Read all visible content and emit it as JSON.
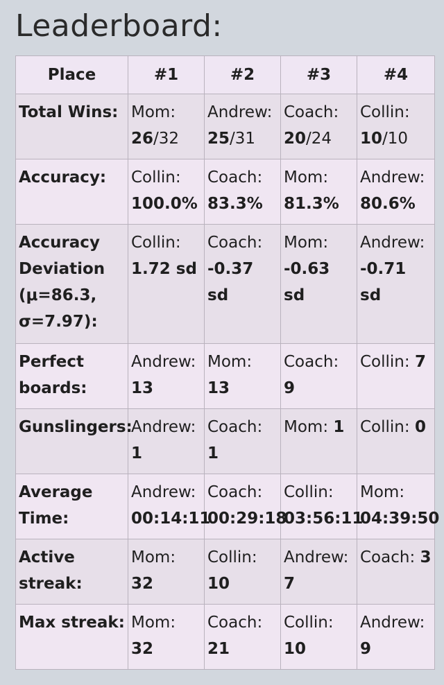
{
  "title": "Leaderboard:",
  "header": [
    "Place",
    "#1",
    "#2",
    "#3",
    "#4"
  ],
  "rows": [
    {
      "label": "Total Wins:",
      "cells": [
        {
          "name": "Mom:",
          "value": "26",
          "suffix": "/32"
        },
        {
          "name": "Andrew:",
          "value": "25",
          "suffix": "/31"
        },
        {
          "name": "Coach:",
          "value": "20",
          "suffix": "/24"
        },
        {
          "name": "Collin:",
          "value": "10",
          "suffix": "/10"
        }
      ]
    },
    {
      "label": "Accuracy:",
      "cells": [
        {
          "name": "Collin:",
          "value": "100.0%",
          "suffix": ""
        },
        {
          "name": "Coach:",
          "value": "83.3%",
          "suffix": ""
        },
        {
          "name": "Mom:",
          "value": "81.3%",
          "suffix": ""
        },
        {
          "name": "Andrew:",
          "value": "80.6%",
          "suffix": ""
        }
      ]
    },
    {
      "label": "Accuracy Deviation (μ=86.3, σ=7.97):",
      "cells": [
        {
          "name": "Collin:",
          "value": "1.72 sd",
          "suffix": ""
        },
        {
          "name": "Coach:",
          "value": "-0.37 sd",
          "suffix": ""
        },
        {
          "name": "Mom:",
          "value": "-0.63 sd",
          "suffix": ""
        },
        {
          "name": "Andrew:",
          "value": "-0.71 sd",
          "suffix": ""
        }
      ]
    },
    {
      "label": "Perfect boards:",
      "cells": [
        {
          "name": "Andrew:",
          "value": "13",
          "suffix": ""
        },
        {
          "name": "Mom:",
          "value": "13",
          "suffix": ""
        },
        {
          "name": "Coach:",
          "value": "9",
          "suffix": ""
        },
        {
          "name": "Collin:",
          "value": "7",
          "suffix": ""
        }
      ]
    },
    {
      "label": "Gunslingers:",
      "cells": [
        {
          "name": "Andrew:",
          "value": "1",
          "suffix": ""
        },
        {
          "name": "Coach:",
          "value": "1",
          "suffix": ""
        },
        {
          "name": "Mom:",
          "value": "1",
          "suffix": ""
        },
        {
          "name": "Collin:",
          "value": "0",
          "suffix": ""
        }
      ]
    },
    {
      "label": "Average Time:",
      "cells": [
        {
          "name": "Andrew:",
          "value": "00:14:11",
          "suffix": ""
        },
        {
          "name": "Coach:",
          "value": "00:29:18",
          "suffix": ""
        },
        {
          "name": "Collin:",
          "value": "03:56:11",
          "suffix": ""
        },
        {
          "name": "Mom:",
          "value": "04:39:50",
          "suffix": ""
        }
      ]
    },
    {
      "label": "Active streak:",
      "cells": [
        {
          "name": "Mom:",
          "value": "32",
          "suffix": ""
        },
        {
          "name": "Collin:",
          "value": "10",
          "suffix": ""
        },
        {
          "name": "Andrew:",
          "value": "7",
          "suffix": ""
        },
        {
          "name": "Coach:",
          "value": "3",
          "suffix": ""
        }
      ]
    },
    {
      "label": "Max streak:",
      "cells": [
        {
          "name": "Mom:",
          "value": "32",
          "suffix": ""
        },
        {
          "name": "Coach:",
          "value": "21",
          "suffix": ""
        },
        {
          "name": "Collin:",
          "value": "10",
          "suffix": ""
        },
        {
          "name": "Andrew:",
          "value": "9",
          "suffix": ""
        }
      ]
    }
  ]
}
